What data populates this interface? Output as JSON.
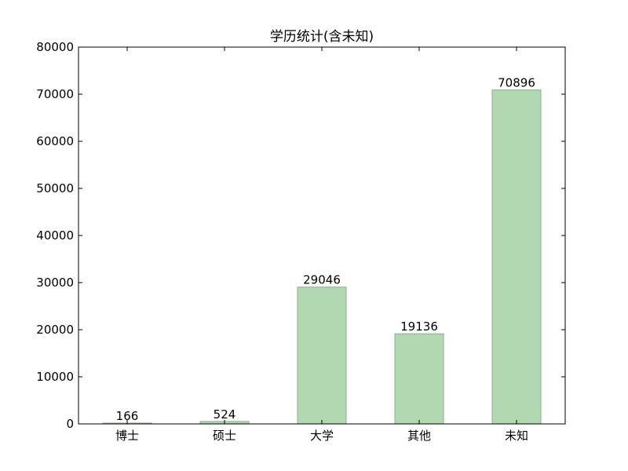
{
  "chart_data": {
    "type": "bar",
    "title": "学历统计(含未知)",
    "xlabel": "",
    "ylabel": "",
    "categories": [
      "博士",
      "硕士",
      "大学",
      "其他",
      "未知"
    ],
    "values": [
      166,
      524,
      29046,
      19136,
      70896
    ],
    "value_labels": [
      "166",
      "524",
      "29046",
      "19136",
      "70896"
    ],
    "ylim": [
      0,
      80000
    ],
    "yticks": [
      0,
      10000,
      20000,
      30000,
      40000,
      50000,
      60000,
      70000,
      80000
    ],
    "ytick_labels": [
      "0",
      "10000",
      "20000",
      "30000",
      "40000",
      "50000",
      "60000",
      "70000",
      "80000"
    ],
    "grid": false,
    "legend": "none",
    "bar_color": "#b2d8b2",
    "bar_edge_color": "#8fae8f"
  }
}
